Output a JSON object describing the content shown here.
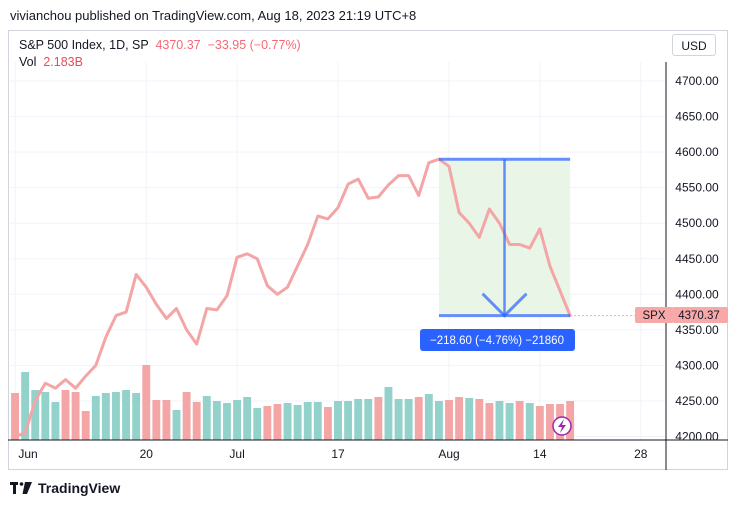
{
  "header": {
    "published": "vivianchou published on TradingView.com, Aug 18, 2023 21:19 UTC+8"
  },
  "legend": {
    "symbol": "S&P 500 Index, 1D, SP",
    "price": "4370.37",
    "change": "−33.95 (−0.77%)",
    "vol_label": "Vol",
    "vol_value": "2.183B"
  },
  "currency_button": "USD",
  "price_label": {
    "symbol": "SPX",
    "value": "4370.37"
  },
  "measure_label": "−218.60 (−4.76%) −21860",
  "footer": {
    "brand": "TradingView"
  },
  "colors": {
    "line": "#f4a5a5",
    "up_bar": "#92d2cb",
    "down_bar": "#f4a5a5",
    "measure": "#2962ff",
    "measure_fill": "#e9f5e7",
    "spx_bg": "#f7a8a8"
  },
  "chart_data": {
    "type": "line",
    "title": "S&P 500 Index, 1D, SP",
    "y_axis_ticks": [
      4200,
      4250,
      4300,
      4350,
      4400,
      4450,
      4500,
      4550,
      4600,
      4650,
      4700
    ],
    "y_axis_labels": [
      "4200.00",
      "4250.00",
      "4300.00",
      "4350.00",
      "4400.00",
      "4450.00",
      "4500.00",
      "4550.00",
      "4600.00",
      "4650.00",
      "4700.00"
    ],
    "ylim": [
      4200,
      4722
    ],
    "x_axis_labels": [
      {
        "label": "Jun",
        "idx": 0
      },
      {
        "label": "20",
        "idx": 13
      },
      {
        "label": "Jul",
        "idx": 22
      },
      {
        "label": "17",
        "idx": 32
      },
      {
        "label": "Aug",
        "idx": 43
      },
      {
        "label": "14",
        "idx": 52
      },
      {
        "label": "28",
        "idx": 62
      }
    ],
    "slots_total": 65,
    "series": [
      {
        "name": "S&P 500 Index",
        "close": [
          4200,
          4205,
          4250,
          4275,
          4268,
          4280,
          4268,
          4285,
          4300,
          4340,
          4370,
          4375,
          4428,
          4410,
          4386,
          4366,
          4380,
          4350,
          4330,
          4380,
          4378,
          4398,
          4452,
          4457,
          4450,
          4412,
          4400,
          4410,
          4440,
          4470,
          4510,
          4506,
          4522,
          4555,
          4562,
          4535,
          4537,
          4554,
          4567,
          4567,
          4539,
          4585,
          4590,
          4580,
          4515,
          4500,
          4480,
          4520,
          4500,
          4470,
          4470,
          4465,
          4492,
          4440,
          4405,
          4370
        ],
        "volume_up": [
          false,
          true,
          true,
          true,
          true,
          false,
          false,
          false,
          true,
          true,
          true,
          true,
          true,
          false,
          false,
          false,
          true,
          false,
          false,
          true,
          true,
          true,
          true,
          true,
          true,
          false,
          false,
          true,
          true,
          true,
          true,
          false,
          true,
          true,
          true,
          true,
          false,
          true,
          true,
          true,
          false,
          true,
          true,
          false,
          false,
          true,
          false,
          false,
          true,
          true,
          false,
          true,
          false,
          false,
          false,
          false
        ],
        "volume_px": [
          47,
          68,
          50,
          48,
          38,
          50,
          48,
          29,
          44,
          47,
          48,
          50,
          47,
          75,
          40,
          40,
          30,
          48,
          38,
          44,
          39,
          37,
          40,
          43,
          32,
          34,
          36,
          37,
          35,
          38,
          38,
          33,
          39,
          39,
          41,
          41,
          43,
          53,
          41,
          41,
          43,
          46,
          39,
          40,
          43,
          42,
          41,
          37,
          39,
          37,
          39,
          37,
          34,
          36,
          36,
          39
        ]
      }
    ]
  }
}
